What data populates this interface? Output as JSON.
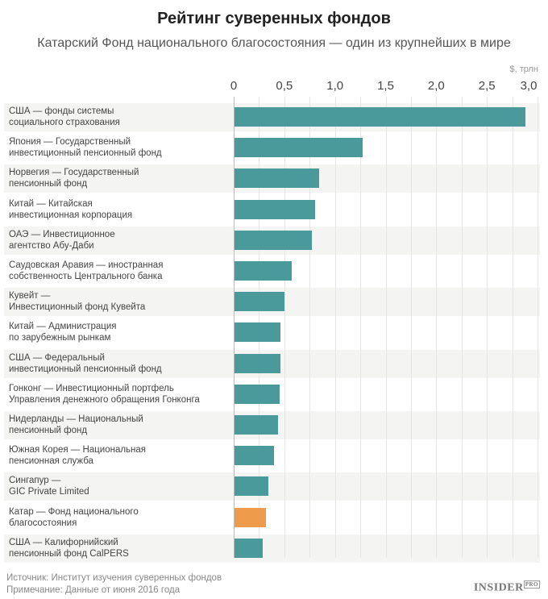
{
  "title": "Рейтинг суверенных фондов",
  "subtitle": "Катарский Фонд национального благосостояния — один из крупнейших в мире",
  "source": "Источник: Институт изучения суверенных фондов",
  "note": "Примечание: Данные от июня 2016 года",
  "logo": {
    "main": "INSIDER",
    "sup": "PRO"
  },
  "chart_data": {
    "type": "bar",
    "orientation": "horizontal",
    "unit": "$, трлн",
    "xlim": [
      0,
      3.0
    ],
    "tick_values": [
      0,
      0.5,
      1.0,
      1.5,
      2.0,
      2.5,
      3.0
    ],
    "tick_labels": [
      "0",
      "0,5",
      "1,0",
      "1,5",
      "2,0",
      "2,5",
      "3,0"
    ],
    "grid": true,
    "colors": {
      "default": "#4a9a9b",
      "highlight": "#ee9b4b"
    },
    "categories": [
      "США — фонды системы\nсоциального страхования",
      "Япония — Государственный\nинвестиционный пенсионный фонд",
      "Норвегия — Государственный\nпенсионный фонд",
      "Китай — Китайская\nинвестиционная корпорация",
      "ОАЭ — Инвестиционное\nагентство Абу-Даби",
      "Саудовская Аравия — иностранная\nсобственность Центрального банка",
      "Кувейт —\nИнвестиционный фонд Кувейта",
      "Китай — Администрация\nпо зарубежным рынкам",
      "США — Федеральный\nинвестиционный пенсионный фонд",
      "Гонконг — Инвестиционный портфель\nУправления денежного обращения Гонконга",
      "Нидерланды — Национальный\nпенсионный фонд",
      "Южная Корея — Национальная\nпенсионная служба",
      "Сингапур —\nGIC Private Limited",
      "Катар — Фонд национального\nблагосостояния",
      "США — Калифорнийский\nпенсионный фонд CalPERS"
    ],
    "values": [
      2.88,
      1.27,
      0.84,
      0.8,
      0.77,
      0.57,
      0.5,
      0.46,
      0.46,
      0.45,
      0.44,
      0.4,
      0.34,
      0.32,
      0.29
    ],
    "highlight_index": 13
  }
}
